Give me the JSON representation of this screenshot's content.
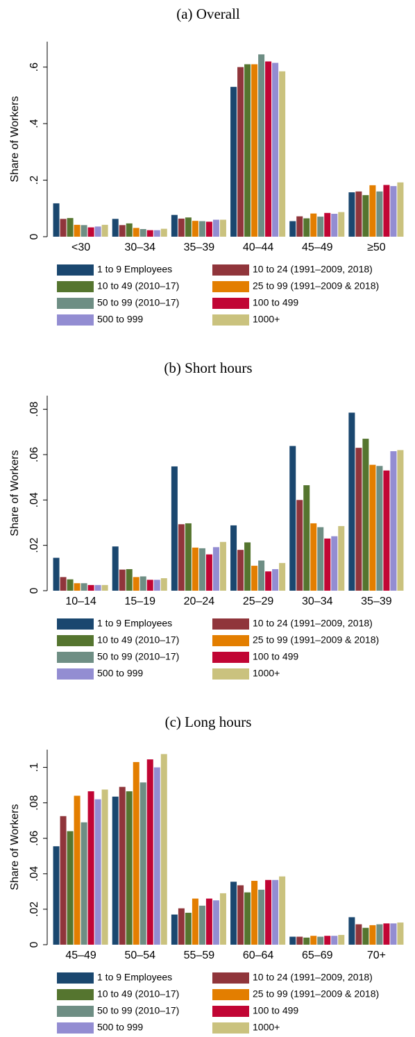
{
  "chart_data": [
    {
      "type": "bar",
      "title": "(a) Overall",
      "y_label": "Share of Workers",
      "categories": [
        "<30",
        "30–34",
        "35–39",
        "40–44",
        "45–49",
        "≥50"
      ],
      "ylim": [
        0,
        0.69
      ],
      "yticks": [
        0,
        {
          "value": 0.2,
          "label": ".2"
        },
        {
          "value": 0.4,
          "label": ".4"
        },
        {
          "value": 0.6,
          "label": ".6"
        }
      ],
      "series": [
        {
          "name": "1 to 9 Employees",
          "color": "#1a476f",
          "values": [
            0.118,
            0.063,
            0.077,
            0.53,
            0.055,
            0.157
          ]
        },
        {
          "name": "10 to 24 (1991–2009, 2018)",
          "color": "#90353b",
          "values": [
            0.063,
            0.041,
            0.064,
            0.6,
            0.072,
            0.16
          ]
        },
        {
          "name": "10 to 49 (2010–17)",
          "color": "#55752f",
          "values": [
            0.066,
            0.047,
            0.068,
            0.61,
            0.065,
            0.147
          ]
        },
        {
          "name": "25 to 99 (1991–2009 & 2018)",
          "color": "#e37e00",
          "values": [
            0.042,
            0.031,
            0.056,
            0.61,
            0.082,
            0.182
          ]
        },
        {
          "name": "50 to 99 (2010–17)",
          "color": "#6e8e84",
          "values": [
            0.041,
            0.027,
            0.055,
            0.645,
            0.071,
            0.16
          ]
        },
        {
          "name": "100 to 499",
          "color": "#c10534",
          "values": [
            0.033,
            0.023,
            0.053,
            0.62,
            0.084,
            0.183
          ]
        },
        {
          "name": "500 to 999",
          "color": "#938dd2",
          "values": [
            0.036,
            0.023,
            0.06,
            0.615,
            0.081,
            0.179
          ]
        },
        {
          "name": "1000+",
          "color": "#cac27e",
          "values": [
            0.042,
            0.028,
            0.06,
            0.585,
            0.087,
            0.192
          ]
        }
      ]
    },
    {
      "type": "bar",
      "title": "(b) Short hours",
      "y_label": "Share of Workers",
      "categories": [
        "10–14",
        "15–19",
        "20–24",
        "25–29",
        "30–34",
        "35–39"
      ],
      "ylim": [
        0,
        0.086
      ],
      "yticks": [
        0,
        {
          "value": 0.02,
          "label": ".02"
        },
        {
          "value": 0.04,
          "label": ".04"
        },
        {
          "value": 0.06,
          "label": ".06"
        },
        {
          "value": 0.08,
          "label": ".08"
        }
      ],
      "series": [
        {
          "name": "1 to 9 Employees",
          "color": "#1a476f",
          "values": [
            0.0145,
            0.0195,
            0.0548,
            0.0288,
            0.0638,
            0.0785
          ]
        },
        {
          "name": "10 to 24 (1991–2009, 2018)",
          "color": "#90353b",
          "values": [
            0.006,
            0.0093,
            0.0293,
            0.018,
            0.04,
            0.063
          ]
        },
        {
          "name": "10 to 49 (2010–17)",
          "color": "#55752f",
          "values": [
            0.005,
            0.0095,
            0.0297,
            0.0213,
            0.0465,
            0.067
          ]
        },
        {
          "name": "25 to 99 (1991–2009 & 2018)",
          "color": "#e37e00",
          "values": [
            0.0033,
            0.006,
            0.019,
            0.011,
            0.0297,
            0.0555
          ]
        },
        {
          "name": "50 to 99 (2010–17)",
          "color": "#6e8e84",
          "values": [
            0.0033,
            0.0063,
            0.0187,
            0.0133,
            0.028,
            0.055
          ]
        },
        {
          "name": "100 to 499",
          "color": "#c10534",
          "values": [
            0.0025,
            0.0048,
            0.016,
            0.0085,
            0.023,
            0.053
          ]
        },
        {
          "name": "500 to 999",
          "color": "#938dd2",
          "values": [
            0.0025,
            0.0048,
            0.0192,
            0.0095,
            0.024,
            0.0615
          ]
        },
        {
          "name": "1000+",
          "color": "#cac27e",
          "values": [
            0.0025,
            0.0055,
            0.0215,
            0.0122,
            0.0285,
            0.062
          ]
        }
      ]
    },
    {
      "type": "bar",
      "title": "(c) Long hours",
      "y_label": "Share of Workers",
      "categories": [
        "45–49",
        "50–54",
        "55–59",
        "60–64",
        "65–69",
        "70+"
      ],
      "ylim": [
        0,
        0.11
      ],
      "yticks": [
        0,
        {
          "value": 0.02,
          "label": ".02"
        },
        {
          "value": 0.04,
          "label": ".04"
        },
        {
          "value": 0.06,
          "label": ".06"
        },
        {
          "value": 0.08,
          "label": ".08"
        },
        {
          "value": 0.1,
          "label": ".1"
        }
      ],
      "series": [
        {
          "name": "1 to 9 Employees",
          "color": "#1a476f",
          "values": [
            0.0555,
            0.0835,
            0.017,
            0.0355,
            0.0045,
            0.0155
          ]
        },
        {
          "name": "10 to 24 (1991–2009, 2018)",
          "color": "#90353b",
          "values": [
            0.0725,
            0.089,
            0.0205,
            0.0335,
            0.0045,
            0.0115
          ]
        },
        {
          "name": "10 to 49 (2010–17)",
          "color": "#55752f",
          "values": [
            0.064,
            0.0865,
            0.018,
            0.0295,
            0.004,
            0.0095
          ]
        },
        {
          "name": "25 to 99 (1991–2009 & 2018)",
          "color": "#e37e00",
          "values": [
            0.084,
            0.103,
            0.026,
            0.036,
            0.005,
            0.011
          ]
        },
        {
          "name": "50 to 99 (2010–17)",
          "color": "#6e8e84",
          "values": [
            0.069,
            0.0915,
            0.022,
            0.031,
            0.0045,
            0.0115
          ]
        },
        {
          "name": "100 to 499",
          "color": "#c10534",
          "values": [
            0.0865,
            0.1045,
            0.026,
            0.0365,
            0.005,
            0.012
          ]
        },
        {
          "name": "500 to 999",
          "color": "#938dd2",
          "values": [
            0.082,
            0.1,
            0.025,
            0.0365,
            0.005,
            0.012
          ]
        },
        {
          "name": "1000+",
          "color": "#cac27e",
          "values": [
            0.0875,
            0.1075,
            0.029,
            0.0385,
            0.0055,
            0.0125
          ]
        }
      ]
    }
  ]
}
